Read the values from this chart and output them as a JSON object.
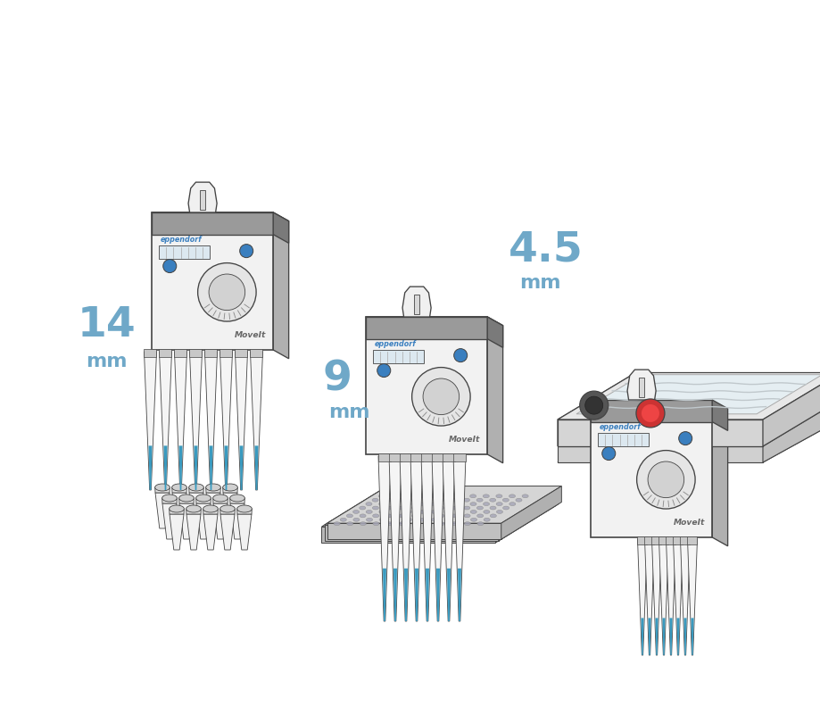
{
  "background_color": "#ffffff",
  "fig_width": 9.2,
  "fig_height": 8.1,
  "dpi": 100,
  "label_14": "14",
  "label_9": "9",
  "label_45": "4.5",
  "label_mm": "mm",
  "label_color": "#6fa8c8",
  "device_face": "#f2f2f2",
  "device_top": "#c8c8c8",
  "device_side": "#aaaaaa",
  "device_band": "#888888",
  "device_outline": "#444444",
  "accent_blue": "#3a7fbf",
  "tip_color": "#f5f5f5",
  "tip_blue": "#3a9abf",
  "gray_dark": "#666666",
  "gray_mid": "#999999",
  "gray_light": "#cccccc",
  "gray_lighter": "#e8e8e8",
  "red_button": "#cc3333",
  "white": "#ffffff",
  "moveit_text": "MoveIt",
  "eppendorf_text": "eppendorf"
}
